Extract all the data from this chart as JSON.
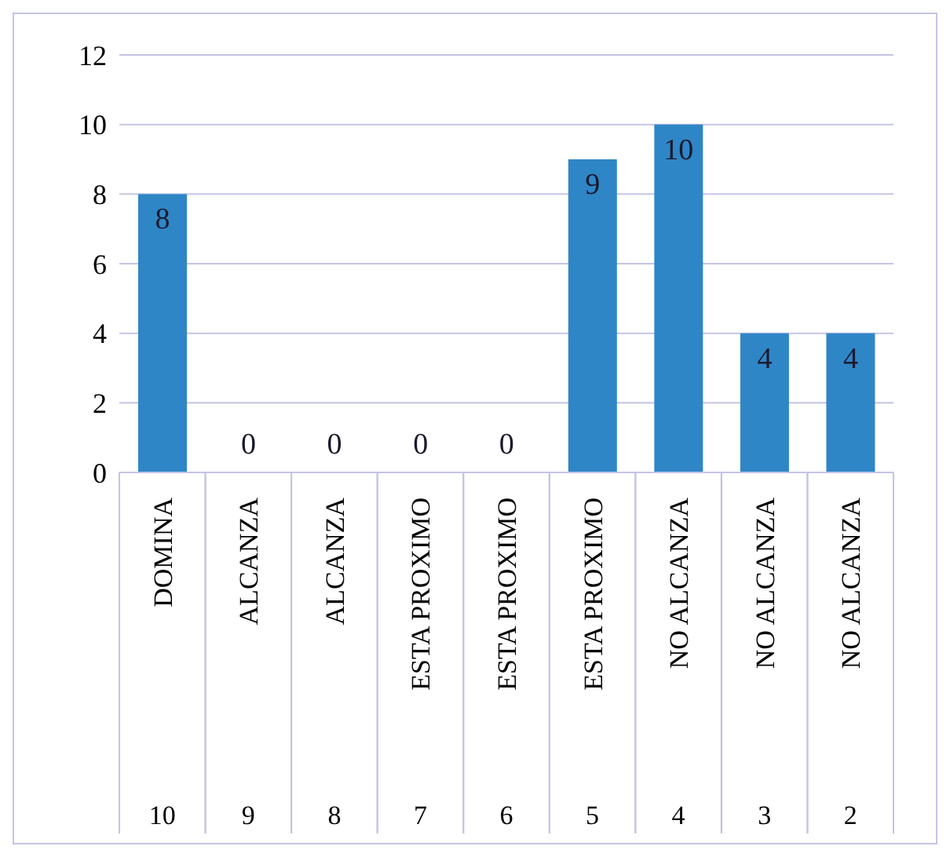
{
  "chart_data": {
    "type": "bar",
    "categories": [
      "DOMINA",
      "ALCANZA",
      "ALCANZA",
      "ESTA PROXIMO",
      "ESTA PROXIMO",
      "ESTA PROXIMO",
      "NO ALCANZA",
      "NO ALCANZA",
      "NO ALCANZA"
    ],
    "values": [
      8,
      0,
      0,
      0,
      0,
      9,
      10,
      4,
      4
    ],
    "color": "#2f86c6",
    "ylim": [
      0,
      12
    ],
    "yticks": [
      0,
      2,
      4,
      6,
      8,
      10,
      12
    ],
    "grid": "y",
    "data_labels": true,
    "legend": false,
    "annotations": [
      "10",
      "9",
      "8",
      "7",
      "6",
      "5",
      "4",
      "3",
      "2"
    ]
  }
}
